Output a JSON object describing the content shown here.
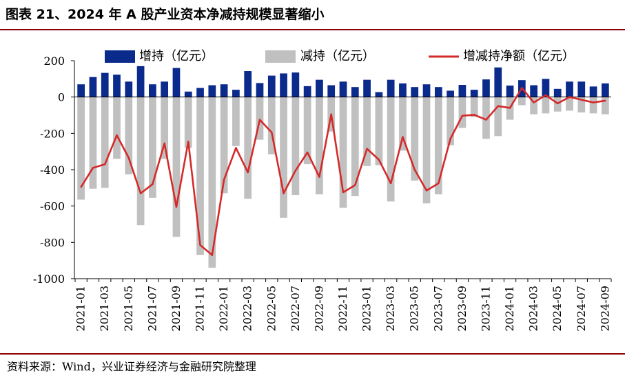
{
  "title": "图表 21、2024 年 A 股产业资本净减持规模显著缩小",
  "source": "资料来源：Wind，兴业证券经济与金融研究院整理",
  "chart_data": {
    "type": "bar",
    "title": "图表 21、2024 年 A 股产业资本净减持规模显著缩小",
    "xlabel": "",
    "ylabel": "",
    "ylim": [
      -1000,
      200
    ],
    "yticks": [
      200,
      0,
      -200,
      -400,
      -600,
      -800,
      -1000
    ],
    "grid": false,
    "legend_position": "top",
    "x": [
      "2021-01",
      "2021-02",
      "2021-03",
      "2021-04",
      "2021-05",
      "2021-06",
      "2021-07",
      "2021-08",
      "2021-09",
      "2021-10",
      "2021-11",
      "2021-12",
      "2022-01",
      "2022-02",
      "2022-03",
      "2022-04",
      "2022-05",
      "2022-06",
      "2022-07",
      "2022-08",
      "2022-09",
      "2022-10",
      "2022-11",
      "2022-12",
      "2023-01",
      "2023-02",
      "2023-03",
      "2023-04",
      "2023-05",
      "2023-06",
      "2023-07",
      "2023-08",
      "2023-09",
      "2023-10",
      "2023-11",
      "2023-12",
      "2024-01",
      "2024-02",
      "2024-03",
      "2024-04",
      "2024-05",
      "2024-06",
      "2024-07",
      "2024-08",
      "2024-09"
    ],
    "xtick_labels": [
      "2021-01",
      "2021-03",
      "2021-05",
      "2021-07",
      "2021-09",
      "2021-11",
      "2022-01",
      "2022-03",
      "2022-05",
      "2022-07",
      "2022-09",
      "2022-11",
      "2023-01",
      "2023-03",
      "2023-05",
      "2023-07",
      "2023-09",
      "2023-11",
      "2024-01",
      "2024-03",
      "2024-05",
      "2024-07",
      "2024-09"
    ],
    "series": [
      {
        "name": "增持（亿元）",
        "type": "bar",
        "color": "#0a2a8c",
        "values": [
          70,
          110,
          133,
          123,
          85,
          170,
          70,
          85,
          160,
          30,
          50,
          65,
          70,
          40,
          143,
          77,
          118,
          130,
          135,
          60,
          95,
          65,
          85,
          55,
          95,
          27,
          95,
          75,
          55,
          70,
          55,
          35,
          67,
          40,
          97,
          163,
          63,
          93,
          65,
          100,
          45,
          85,
          85,
          58,
          75
        ]
      },
      {
        "name": "减持（亿元）",
        "type": "bar",
        "color": "#c0c0c0",
        "values": [
          -565,
          -505,
          -500,
          -340,
          -425,
          -705,
          -555,
          -340,
          -770,
          -280,
          -870,
          -940,
          -530,
          -270,
          -560,
          -235,
          -315,
          -665,
          -540,
          -370,
          -535,
          -190,
          -610,
          -545,
          -380,
          -375,
          -575,
          -295,
          -460,
          -585,
          -535,
          -265,
          -170,
          -110,
          -230,
          -215,
          -125,
          -45,
          -95,
          -90,
          -80,
          -75,
          -85,
          -90,
          -95
        ]
      },
      {
        "name": "增减持净额（亿元）",
        "type": "line",
        "color": "#d42a2a",
        "values": [
          -495,
          -390,
          -370,
          -210,
          -335,
          -530,
          -480,
          -255,
          -605,
          -245,
          -815,
          -870,
          -455,
          -280,
          -415,
          -125,
          -195,
          -530,
          -405,
          -305,
          -440,
          -95,
          -525,
          -485,
          -285,
          -345,
          -475,
          -220,
          -400,
          -515,
          -475,
          -230,
          -103,
          -98,
          -125,
          -50,
          -60,
          50,
          -30,
          10,
          -35,
          0,
          -15,
          -30,
          -20
        ]
      }
    ]
  }
}
